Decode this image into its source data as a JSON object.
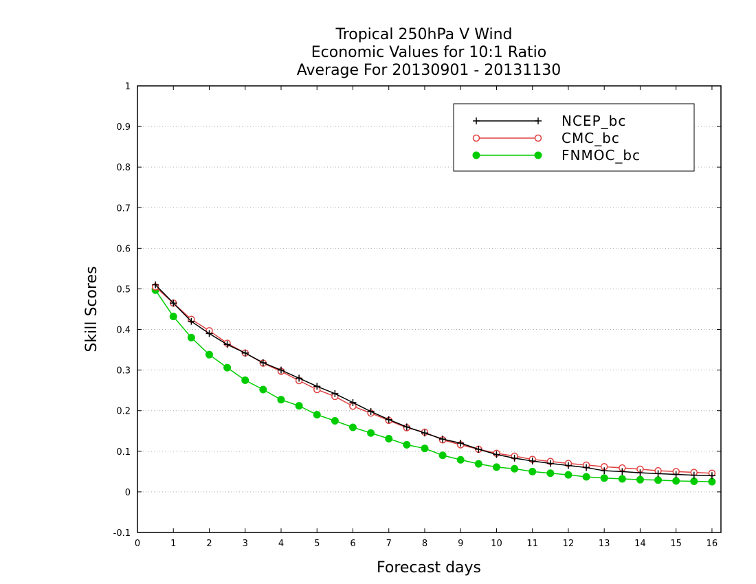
{
  "chart_data": {
    "type": "line",
    "title": [
      "Tropical 250hPa V Wind",
      "Economic Values for 10:1 Ratio",
      "Average For 20130901 - 20131130"
    ],
    "xlabel": "Forecast days",
    "ylabel": "Skill Scores",
    "xlim": [
      0,
      16.25
    ],
    "ylim": [
      -0.1,
      1
    ],
    "xticks": [
      0,
      1,
      2,
      3,
      4,
      5,
      6,
      7,
      8,
      9,
      10,
      11,
      12,
      13,
      14,
      15,
      16
    ],
    "yticks": [
      -0.1,
      0,
      0.1,
      0.2,
      0.3,
      0.4,
      0.5,
      0.6,
      0.7,
      0.8,
      0.9,
      1
    ],
    "ytick_labels": [
      "-0.1",
      "0",
      "0.1",
      "0.2",
      "0.3",
      "0.4",
      "0.5",
      "0.6",
      "0.7",
      "0.8",
      "0.9",
      "1"
    ],
    "grid": "horizontal dotted",
    "legend_position": "top-right",
    "x": [
      0.5,
      1,
      1.5,
      2,
      2.5,
      3,
      3.5,
      4,
      4.5,
      5,
      5.5,
      6,
      6.5,
      7,
      7.5,
      8,
      8.5,
      9,
      9.5,
      10,
      10.5,
      11,
      11.5,
      12,
      12.5,
      13,
      13.5,
      14,
      14.5,
      15,
      15.5,
      16
    ],
    "series": [
      {
        "name": "NCEP_bc",
        "color": "#000000",
        "marker": "plus",
        "values": [
          0.51,
          0.465,
          0.42,
          0.39,
          0.363,
          0.342,
          0.318,
          0.3,
          0.28,
          0.26,
          0.242,
          0.22,
          0.198,
          0.178,
          0.16,
          0.145,
          0.13,
          0.12,
          0.105,
          0.092,
          0.083,
          0.076,
          0.07,
          0.065,
          0.06,
          0.052,
          0.05,
          0.047,
          0.045,
          0.043,
          0.041,
          0.04
        ]
      },
      {
        "name": "CMC_bc",
        "color": "#e04040",
        "marker": "open-circle",
        "values": [
          0.505,
          0.465,
          0.425,
          0.397,
          0.366,
          0.342,
          0.317,
          0.297,
          0.274,
          0.252,
          0.235,
          0.211,
          0.194,
          0.176,
          0.158,
          0.147,
          0.128,
          0.116,
          0.105,
          0.095,
          0.088,
          0.08,
          0.075,
          0.07,
          0.066,
          0.062,
          0.059,
          0.056,
          0.052,
          0.05,
          0.048,
          0.046
        ]
      },
      {
        "name": "FNMOC_bc",
        "color": "#00cc00",
        "marker": "filled-circle",
        "values": [
          0.497,
          0.432,
          0.38,
          0.338,
          0.306,
          0.275,
          0.252,
          0.227,
          0.212,
          0.19,
          0.175,
          0.159,
          0.145,
          0.131,
          0.116,
          0.107,
          0.09,
          0.079,
          0.069,
          0.061,
          0.057,
          0.05,
          0.046,
          0.042,
          0.037,
          0.034,
          0.032,
          0.03,
          0.029,
          0.027,
          0.026,
          0.025
        ]
      }
    ]
  }
}
